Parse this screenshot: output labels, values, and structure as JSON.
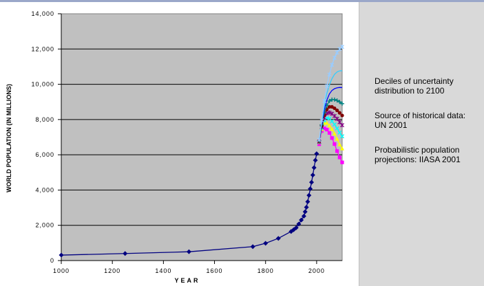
{
  "chart_data": {
    "type": "line",
    "xlabel": "YEAR",
    "ylabel": "WORLD POPULATION (IN MILLIONS)",
    "xlim": [
      1000,
      2100
    ],
    "ylim": [
      0,
      14000
    ],
    "x_ticks": [
      1000,
      1200,
      1400,
      1600,
      1800,
      2000
    ],
    "y_ticks": [
      0,
      2000,
      4000,
      6000,
      8000,
      10000,
      12000,
      14000
    ],
    "x_tick_labels": [
      "1000",
      "1200",
      "1400",
      "1600",
      "1800",
      "2000"
    ],
    "y_tick_labels": [
      "0",
      "2,000",
      "4,000",
      "6,000",
      "8,000",
      "10,000",
      "12,000",
      "14,000"
    ],
    "plot_background": "#c0c0c0",
    "grid": "horizontal",
    "historical": {
      "color": "#000080",
      "x": [
        1000,
        1250,
        1500,
        1750,
        1800,
        1850,
        1900,
        1910,
        1920,
        1930,
        1940,
        1950,
        1955,
        1960,
        1965,
        1970,
        1975,
        1980,
        1985,
        1990,
        1995,
        2000
      ],
      "y": [
        310,
        400,
        500,
        790,
        980,
        1260,
        1650,
        1750,
        1860,
        2070,
        2300,
        2520,
        2770,
        3020,
        3340,
        3700,
        4070,
        4440,
        4850,
        5270,
        5690,
        6060
      ]
    },
    "projection_years": [
      2010,
      2020,
      2030,
      2040,
      2050,
      2060,
      2070,
      2080,
      2090,
      2100
    ],
    "projections": [
      {
        "color": "#ff00ff",
        "marker": "square",
        "values": [
          6600,
          7350,
          7500,
          7430,
          7240,
          6950,
          6610,
          6210,
          5850,
          5570
        ]
      },
      {
        "color": "#ffff00",
        "marker": "triangle",
        "values": [
          6700,
          7450,
          7800,
          7800,
          7650,
          7450,
          7200,
          6900,
          6580,
          6350
        ]
      },
      {
        "color": "#00ffff",
        "marker": "x",
        "values": [
          6720,
          7520,
          7950,
          8080,
          8050,
          7900,
          7720,
          7500,
          7260,
          7050
        ]
      },
      {
        "color": "#800080",
        "marker": "star",
        "values": [
          6740,
          7580,
          8100,
          8350,
          8400,
          8330,
          8200,
          8040,
          7850,
          7680
        ]
      },
      {
        "color": "#800000",
        "marker": "circle",
        "values": [
          6760,
          7640,
          8250,
          8580,
          8720,
          8720,
          8640,
          8520,
          8380,
          8230
        ]
      },
      {
        "color": "#008080",
        "marker": "plus",
        "values": [
          6780,
          7700,
          8400,
          8800,
          9050,
          9130,
          9130,
          9080,
          9000,
          8900
        ]
      },
      {
        "color": "#0000ff",
        "marker": "none",
        "values": [
          6800,
          7760,
          8560,
          9100,
          9450,
          9650,
          9750,
          9800,
          9820,
          9810
        ]
      },
      {
        "color": "#33ccff",
        "marker": "none",
        "values": [
          6820,
          7850,
          8780,
          9480,
          9970,
          10320,
          10560,
          10700,
          10760,
          10770
        ]
      },
      {
        "color": "#99ccff",
        "marker": "star",
        "values": [
          6850,
          7950,
          9050,
          9900,
          10550,
          11100,
          11500,
          11800,
          12000,
          12120
        ]
      }
    ]
  },
  "notes": [
    "Deciles of uncertainty\ndistribution to 2100",
    "Source of historical data:\nUN 2001",
    "Probabilistic population\nprojections: IIASA 2001"
  ]
}
